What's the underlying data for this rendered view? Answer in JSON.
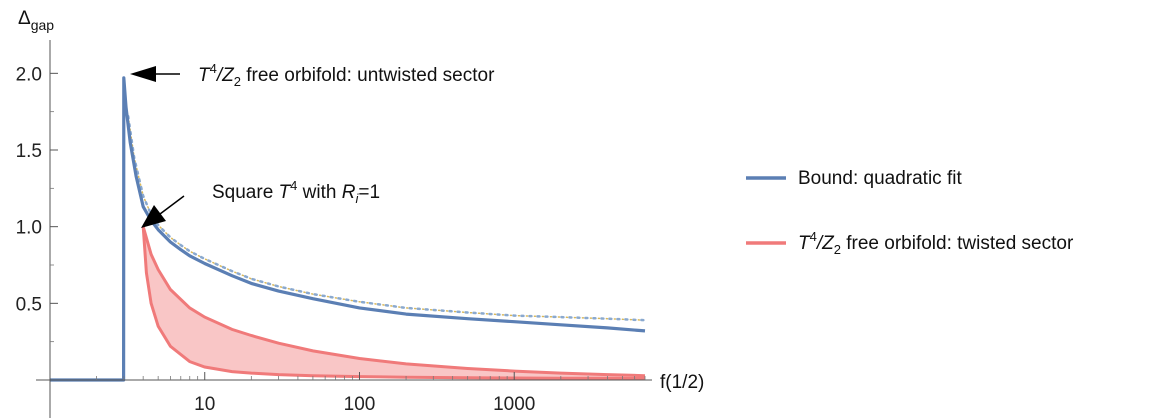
{
  "chart_data": {
    "type": "line",
    "xlabel": "f(1/2)",
    "ylabel": "Δ",
    "ylabel_sub": "gap",
    "x_scale": "log",
    "xlim": [
      1,
      7000
    ],
    "ylim": [
      0,
      2.1
    ],
    "x_ticks": [
      {
        "value": 10,
        "label": "10"
      },
      {
        "value": 100,
        "label": "100"
      },
      {
        "value": 1000,
        "label": "1000"
      }
    ],
    "y_ticks": [
      {
        "value": 0.5,
        "label": "0.5"
      },
      {
        "value": 1.0,
        "label": "1.0"
      },
      {
        "value": 1.5,
        "label": "1.5"
      },
      {
        "value": 2.0,
        "label": "2.0"
      }
    ],
    "grid": false,
    "legend_position": "right",
    "series": [
      {
        "name": "Bound: quadratic fit",
        "color": "#5b7fb4",
        "x": [
          1,
          2.99,
          3,
          3.1,
          3.3,
          3.6,
          4,
          4.5,
          5,
          6,
          7,
          8,
          10,
          15,
          20,
          30,
          50,
          100,
          200,
          500,
          1000,
          2000,
          4000,
          7000
        ],
        "y": [
          0,
          0,
          1.97,
          1.78,
          1.55,
          1.33,
          1.13,
          1.04,
          0.98,
          0.9,
          0.85,
          0.81,
          0.76,
          0.68,
          0.63,
          0.58,
          0.53,
          0.47,
          0.43,
          0.4,
          0.38,
          0.36,
          0.34,
          0.32
        ]
      },
      {
        "name": "",
        "color": "#8aa9cf",
        "style": "dotted",
        "x": [
          3.2,
          3.5,
          4,
          4.5,
          5,
          6,
          7,
          8,
          10,
          15,
          20,
          30,
          50,
          100,
          200,
          500,
          1000,
          2000,
          4000,
          7000
        ],
        "y": [
          1.72,
          1.45,
          1.2,
          1.08,
          1.01,
          0.93,
          0.88,
          0.84,
          0.79,
          0.71,
          0.66,
          0.61,
          0.56,
          0.51,
          0.47,
          0.44,
          0.42,
          0.41,
          0.4,
          0.39
        ]
      },
      {
        "name": "T⁴/Z₂ free orbifold: twisted sector",
        "color": "#f07a7a",
        "fill": "#f9c6c6",
        "upper": {
          "x": [
            4,
            4.5,
            5,
            6,
            8,
            10,
            15,
            20,
            30,
            50,
            100,
            200,
            500,
            1000,
            2000,
            4000,
            7000
          ],
          "y": [
            1.0,
            0.82,
            0.72,
            0.59,
            0.47,
            0.41,
            0.33,
            0.29,
            0.24,
            0.19,
            0.14,
            0.105,
            0.075,
            0.058,
            0.045,
            0.035,
            0.028
          ]
        },
        "lower": {
          "x": [
            4,
            4.2,
            4.5,
            5,
            6,
            8,
            10,
            15,
            20,
            30,
            50,
            100,
            200,
            500,
            1000,
            2000,
            4000,
            7000
          ],
          "y": [
            1.0,
            0.7,
            0.5,
            0.35,
            0.22,
            0.12,
            0.085,
            0.055,
            0.045,
            0.035,
            0.028,
            0.022,
            0.018,
            0.015,
            0.013,
            0.012,
            0.011,
            0.01
          ]
        }
      }
    ],
    "annotations": [
      {
        "id": "untwisted",
        "x": 3,
        "y": 1.97,
        "text_T": "T",
        "text_sup": "4",
        "text_slash": "/Z",
        "text_sub": "2",
        "text_rest": " free orbifold: untwisted sector"
      },
      {
        "id": "square",
        "x": 4,
        "y": 1.0,
        "text_pre": "Square ",
        "text_T": "T",
        "text_sup": "4",
        "text_mid": " with ",
        "text_R": "R",
        "text_Rsub": "i",
        "text_rest": "=1"
      }
    ],
    "legend": [
      {
        "label": "Bound: quadratic fit",
        "color": "#5b7fb4"
      },
      {
        "label_T": "T",
        "label_sup": "4",
        "label_slash": "/Z",
        "label_sub": "2",
        "label_rest": " free orbifold: twisted sector",
        "color": "#f07a7a"
      }
    ]
  }
}
